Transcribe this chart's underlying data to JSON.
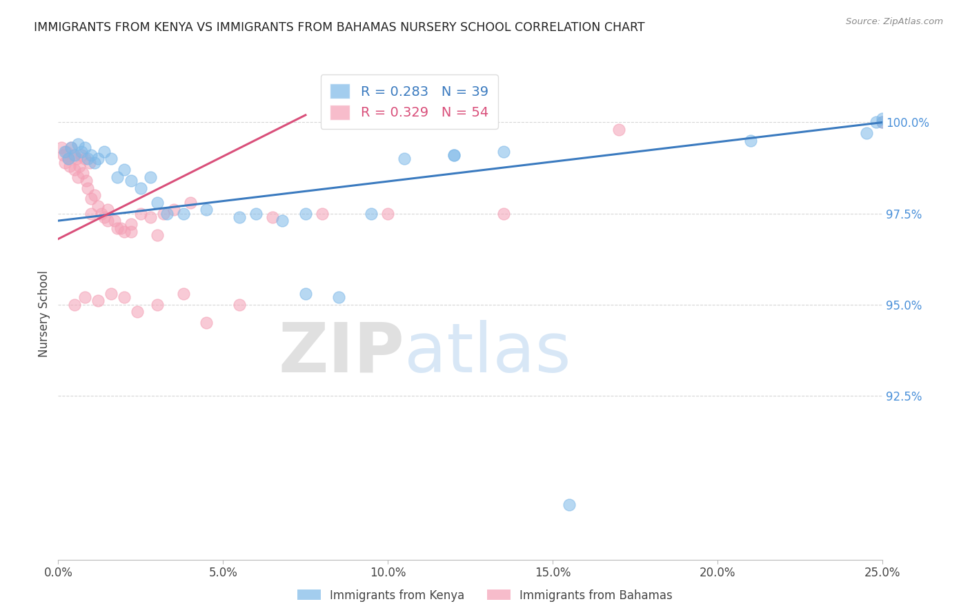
{
  "title": "IMMIGRANTS FROM KENYA VS IMMIGRANTS FROM BAHAMAS NURSERY SCHOOL CORRELATION CHART",
  "source": "Source: ZipAtlas.com",
  "ylabel": "Nursery School",
  "legend_kenya": "R = 0.283   N = 39",
  "legend_bahamas": "R = 0.329   N = 54",
  "legend_label_kenya": "Immigrants from Kenya",
  "legend_label_bahamas": "Immigrants from Bahamas",
  "xlim": [
    0.0,
    25.0
  ],
  "ylim": [
    88.0,
    101.5
  ],
  "yticks": [
    92.5,
    95.0,
    97.5,
    100.0
  ],
  "xticks": [
    0.0,
    5.0,
    10.0,
    15.0,
    20.0,
    25.0
  ],
  "xtick_labels": [
    "0.0%",
    "5.0%",
    "10.0%",
    "15.0%",
    "20.0%",
    "25.0%"
  ],
  "ytick_labels": [
    "92.5%",
    "95.0%",
    "97.5%",
    "100.0%"
  ],
  "color_kenya": "#7db8e8",
  "color_bahamas": "#f4a0b5",
  "trendline_kenya": "#3a7abf",
  "trendline_bahamas": "#d94f7a",
  "watermark_zip": "ZIP",
  "watermark_atlas": "atlas",
  "kenya_x": [
    0.2,
    0.3,
    0.4,
    0.5,
    0.6,
    0.7,
    0.8,
    0.9,
    1.0,
    1.1,
    1.2,
    1.4,
    1.6,
    1.8,
    2.0,
    2.2,
    2.5,
    2.8,
    3.0,
    3.3,
    3.8,
    4.5,
    5.5,
    6.0,
    6.8,
    7.5,
    8.5,
    9.5,
    10.5,
    12.0,
    13.5,
    15.5,
    21.0,
    24.5,
    24.8,
    25.0,
    25.0,
    12.0,
    7.5
  ],
  "kenya_y": [
    99.2,
    99.0,
    99.3,
    99.1,
    99.4,
    99.2,
    99.3,
    99.0,
    99.1,
    98.9,
    99.0,
    99.2,
    99.0,
    98.5,
    98.7,
    98.4,
    98.2,
    98.5,
    97.8,
    97.5,
    97.5,
    97.6,
    97.4,
    97.5,
    97.3,
    95.3,
    95.2,
    97.5,
    99.0,
    99.1,
    99.2,
    89.5,
    99.5,
    99.7,
    100.0,
    100.1,
    100.0,
    99.1,
    97.5
  ],
  "bahamas_x": [
    0.1,
    0.15,
    0.2,
    0.25,
    0.3,
    0.35,
    0.4,
    0.45,
    0.5,
    0.55,
    0.6,
    0.65,
    0.7,
    0.75,
    0.8,
    0.85,
    0.9,
    0.95,
    1.0,
    1.1,
    1.2,
    1.3,
    1.4,
    1.5,
    1.7,
    1.9,
    2.0,
    2.2,
    2.5,
    2.8,
    3.0,
    3.2,
    3.5,
    4.0,
    1.0,
    1.5,
    1.8,
    2.2,
    0.5,
    0.8,
    1.2,
    1.6,
    2.0,
    2.4,
    3.0,
    3.8,
    4.5,
    5.5,
    6.5,
    8.0,
    10.0,
    13.5,
    17.0,
    25.0
  ],
  "bahamas_y": [
    99.3,
    99.1,
    98.9,
    99.2,
    99.0,
    98.8,
    99.3,
    99.1,
    98.7,
    99.0,
    98.5,
    98.8,
    99.1,
    98.6,
    99.0,
    98.4,
    98.2,
    98.9,
    97.9,
    98.0,
    97.7,
    97.5,
    97.4,
    97.6,
    97.3,
    97.1,
    97.0,
    97.2,
    97.5,
    97.4,
    96.9,
    97.5,
    97.6,
    97.8,
    97.5,
    97.3,
    97.1,
    97.0,
    95.0,
    95.2,
    95.1,
    95.3,
    95.2,
    94.8,
    95.0,
    95.3,
    94.5,
    95.0,
    97.4,
    97.5,
    97.5,
    97.5,
    99.8,
    100.0
  ],
  "trend_kenya_x0": 0.0,
  "trend_kenya_x1": 25.0,
  "trend_kenya_y0": 97.3,
  "trend_kenya_y1": 100.0,
  "trend_bahamas_x0": 0.0,
  "trend_bahamas_x1": 7.5,
  "trend_bahamas_y0": 96.8,
  "trend_bahamas_y1": 100.2
}
